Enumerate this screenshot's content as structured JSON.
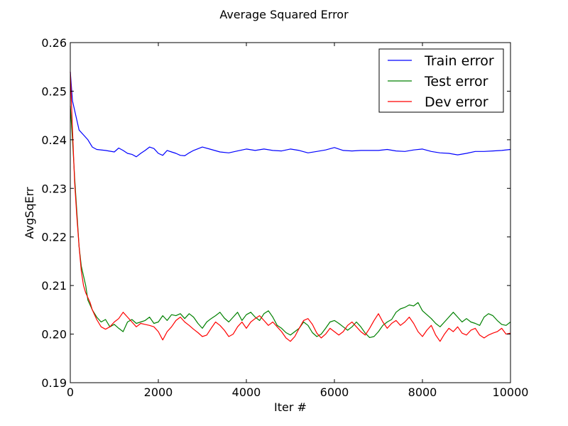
{
  "chart_data": {
    "type": "line",
    "title": "Average Squared Error",
    "xlabel": "Iter #",
    "ylabel": "AvgSqErr",
    "xlim": [
      0,
      10000
    ],
    "ylim": [
      0.19,
      0.26
    ],
    "x_ticks": [
      0,
      2000,
      4000,
      6000,
      8000,
      10000
    ],
    "y_ticks": [
      0.19,
      0.2,
      0.21,
      0.22,
      0.23,
      0.24,
      0.25,
      0.26
    ],
    "x_tick_labels": [
      "0",
      "2000",
      "4000",
      "6000",
      "8000",
      "10000"
    ],
    "y_tick_labels": [
      "0.19",
      "0.20",
      "0.21",
      "0.22",
      "0.23",
      "0.24",
      "0.25",
      "0.26"
    ],
    "grid": false,
    "legend_position": "top-right",
    "series": [
      {
        "name": "Train error",
        "color": "#0000ff",
        "x": [
          0,
          50,
          100,
          150,
          200,
          300,
          400,
          500,
          600,
          800,
          1000,
          1100,
          1200,
          1300,
          1400,
          1500,
          1600,
          1700,
          1800,
          1900,
          2000,
          2100,
          2200,
          2300,
          2400,
          2500,
          2600,
          2700,
          2800,
          3000,
          3200,
          3400,
          3600,
          3800,
          4000,
          4200,
          4400,
          4600,
          4800,
          5000,
          5200,
          5400,
          5600,
          5800,
          6000,
          6200,
          6400,
          6600,
          6800,
          7000,
          7200,
          7400,
          7600,
          7800,
          8000,
          8200,
          8400,
          8600,
          8800,
          9000,
          9200,
          9400,
          9600,
          9800,
          10000
        ],
        "y": [
          0.254,
          0.248,
          0.246,
          0.244,
          0.242,
          0.241,
          0.24,
          0.2385,
          0.238,
          0.2378,
          0.2375,
          0.2383,
          0.2378,
          0.2372,
          0.237,
          0.2365,
          0.2372,
          0.2378,
          0.2385,
          0.2382,
          0.2372,
          0.2368,
          0.2378,
          0.2375,
          0.2372,
          0.2368,
          0.2367,
          0.2373,
          0.2378,
          0.2385,
          0.238,
          0.2375,
          0.2373,
          0.2377,
          0.2381,
          0.2378,
          0.2381,
          0.2378,
          0.2377,
          0.2381,
          0.2378,
          0.2373,
          0.2376,
          0.2379,
          0.2384,
          0.2378,
          0.2377,
          0.2378,
          0.2378,
          0.2378,
          0.238,
          0.2377,
          0.2376,
          0.2379,
          0.2381,
          0.2376,
          0.2373,
          0.2372,
          0.2369,
          0.2372,
          0.2376,
          0.2376,
          0.2377,
          0.2378,
          0.238
        ]
      },
      {
        "name": "Test error",
        "color": "#008000",
        "x": [
          0,
          50,
          100,
          150,
          200,
          250,
          300,
          350,
          400,
          450,
          500,
          600,
          700,
          800,
          900,
          1000,
          1100,
          1200,
          1300,
          1400,
          1500,
          1600,
          1700,
          1800,
          1900,
          2000,
          2100,
          2200,
          2300,
          2400,
          2500,
          2600,
          2700,
          2800,
          2900,
          3000,
          3100,
          3200,
          3300,
          3400,
          3500,
          3600,
          3700,
          3800,
          3900,
          4000,
          4100,
          4200,
          4300,
          4400,
          4500,
          4600,
          4700,
          4800,
          4900,
          5000,
          5100,
          5200,
          5300,
          5400,
          5500,
          5600,
          5700,
          5800,
          5900,
          6000,
          6100,
          6200,
          6300,
          6400,
          6500,
          6600,
          6700,
          6800,
          6900,
          7000,
          7100,
          7200,
          7300,
          7400,
          7500,
          7600,
          7700,
          7800,
          7900,
          8000,
          8100,
          8200,
          8300,
          8400,
          8500,
          8600,
          8700,
          8800,
          8900,
          9000,
          9100,
          9200,
          9300,
          9400,
          9500,
          9600,
          9700,
          9800,
          9900,
          10000
        ],
        "y": [
          0.247,
          0.24,
          0.232,
          0.225,
          0.218,
          0.214,
          0.212,
          0.21,
          0.207,
          0.206,
          0.205,
          0.2035,
          0.2025,
          0.203,
          0.2015,
          0.202,
          0.2012,
          0.2005,
          0.2025,
          0.203,
          0.2022,
          0.2025,
          0.2028,
          0.2035,
          0.2022,
          0.2025,
          0.2038,
          0.2028,
          0.204,
          0.2038,
          0.2042,
          0.2032,
          0.2042,
          0.2035,
          0.2022,
          0.2012,
          0.2025,
          0.2032,
          0.2038,
          0.2045,
          0.2033,
          0.2025,
          0.2035,
          0.2045,
          0.2028,
          0.204,
          0.2045,
          0.2035,
          0.2028,
          0.2042,
          0.2048,
          0.2035,
          0.2018,
          0.2012,
          0.2003,
          0.1998,
          0.2005,
          0.2012,
          0.2025,
          0.2018,
          0.2003,
          0.1995,
          0.2,
          0.2012,
          0.2025,
          0.2028,
          0.2022,
          0.2015,
          0.2008,
          0.2015,
          0.2025,
          0.2015,
          0.2002,
          0.1993,
          0.1995,
          0.2005,
          0.2018,
          0.2025,
          0.203,
          0.2045,
          0.2052,
          0.2055,
          0.206,
          0.2058,
          0.2065,
          0.2048,
          0.204,
          0.2032,
          0.2022,
          0.2015,
          0.2025,
          0.2035,
          0.2045,
          0.2035,
          0.2025,
          0.2032,
          0.2025,
          0.2022,
          0.2018,
          0.2035,
          0.2042,
          0.2038,
          0.2028,
          0.202,
          0.2018,
          0.2025
        ]
      },
      {
        "name": "Dev error",
        "color": "#ff0000",
        "x": [
          0,
          50,
          100,
          150,
          200,
          250,
          300,
          350,
          400,
          450,
          500,
          600,
          700,
          800,
          900,
          1000,
          1100,
          1200,
          1300,
          1400,
          1500,
          1600,
          1700,
          1800,
          1900,
          2000,
          2100,
          2200,
          2300,
          2400,
          2500,
          2600,
          2700,
          2800,
          2900,
          3000,
          3100,
          3200,
          3300,
          3400,
          3500,
          3600,
          3700,
          3800,
          3900,
          4000,
          4100,
          4200,
          4300,
          4400,
          4500,
          4600,
          4700,
          4800,
          4900,
          5000,
          5100,
          5200,
          5300,
          5400,
          5500,
          5600,
          5700,
          5800,
          5900,
          6000,
          6100,
          6200,
          6300,
          6400,
          6500,
          6600,
          6700,
          6800,
          6900,
          7000,
          7100,
          7200,
          7300,
          7400,
          7500,
          7600,
          7700,
          7800,
          7900,
          8000,
          8100,
          8200,
          8300,
          8400,
          8500,
          8600,
          8700,
          8800,
          8900,
          9000,
          9100,
          9200,
          9300,
          9400,
          9500,
          9600,
          9700,
          9800,
          9900,
          10000
        ],
        "y": [
          0.254,
          0.242,
          0.231,
          0.224,
          0.218,
          0.213,
          0.21,
          0.2085,
          0.2075,
          0.2065,
          0.205,
          0.203,
          0.2015,
          0.201,
          0.2015,
          0.2025,
          0.2032,
          0.2045,
          0.2035,
          0.2025,
          0.2015,
          0.2022,
          0.202,
          0.2018,
          0.2015,
          0.2005,
          0.1988,
          0.2005,
          0.2015,
          0.2028,
          0.2035,
          0.2025,
          0.2018,
          0.201,
          0.2003,
          0.1995,
          0.1998,
          0.2012,
          0.2025,
          0.2018,
          0.2008,
          0.1995,
          0.2,
          0.2015,
          0.2025,
          0.2012,
          0.2025,
          0.2032,
          0.2038,
          0.2028,
          0.2018,
          0.2025,
          0.2015,
          0.2005,
          0.1992,
          0.1985,
          0.1995,
          0.2012,
          0.2028,
          0.2032,
          0.202,
          0.2002,
          0.1992,
          0.2,
          0.2012,
          0.2005,
          0.1998,
          0.2005,
          0.2018,
          0.2025,
          0.2015,
          0.2005,
          0.1998,
          0.2012,
          0.2028,
          0.2042,
          0.2025,
          0.2012,
          0.2022,
          0.2028,
          0.2018,
          0.2025,
          0.2035,
          0.2022,
          0.2005,
          0.1995,
          0.2008,
          0.2018,
          0.1998,
          0.1985,
          0.2,
          0.2012,
          0.2005,
          0.2015,
          0.2002,
          0.1998,
          0.2008,
          0.2012,
          0.1998,
          0.1992,
          0.1998,
          0.2002,
          0.2005,
          0.2012,
          0.2,
          0.2002
        ]
      }
    ]
  }
}
